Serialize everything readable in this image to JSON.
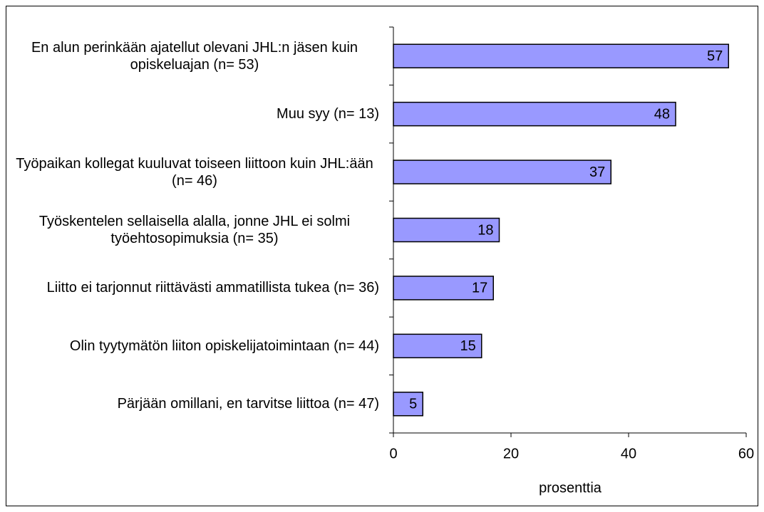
{
  "chart_data": {
    "type": "bar",
    "orientation": "horizontal",
    "categories": [
      "En alun perinkään ajatellut olevani JHL:n jäsen kuin opiskeluajan (n= 53)",
      "Muu syy (n= 13)",
      "Työpaikan kollegat kuuluvat toiseen liittoon kuin JHL:ään (n= 46)",
      "Työskentelen sellaisella alalla, jonne JHL ei solmi työehtosopimuksia (n= 35)",
      "Liitto ei tarjonnut riittävästi ammatillista tukea (n= 36)",
      "Olin tyytymätön liiton opiskelijatoimintaan (n= 44)",
      "Pärjään omillani, en tarvitse liittoa (n= 47)"
    ],
    "values": [
      57,
      48,
      37,
      18,
      17,
      15,
      5
    ],
    "color": "#9999ff",
    "xlabel": "prosenttia",
    "xlim": [
      0,
      60
    ],
    "xticks": [
      0,
      20,
      40,
      60
    ],
    "grid": false
  }
}
